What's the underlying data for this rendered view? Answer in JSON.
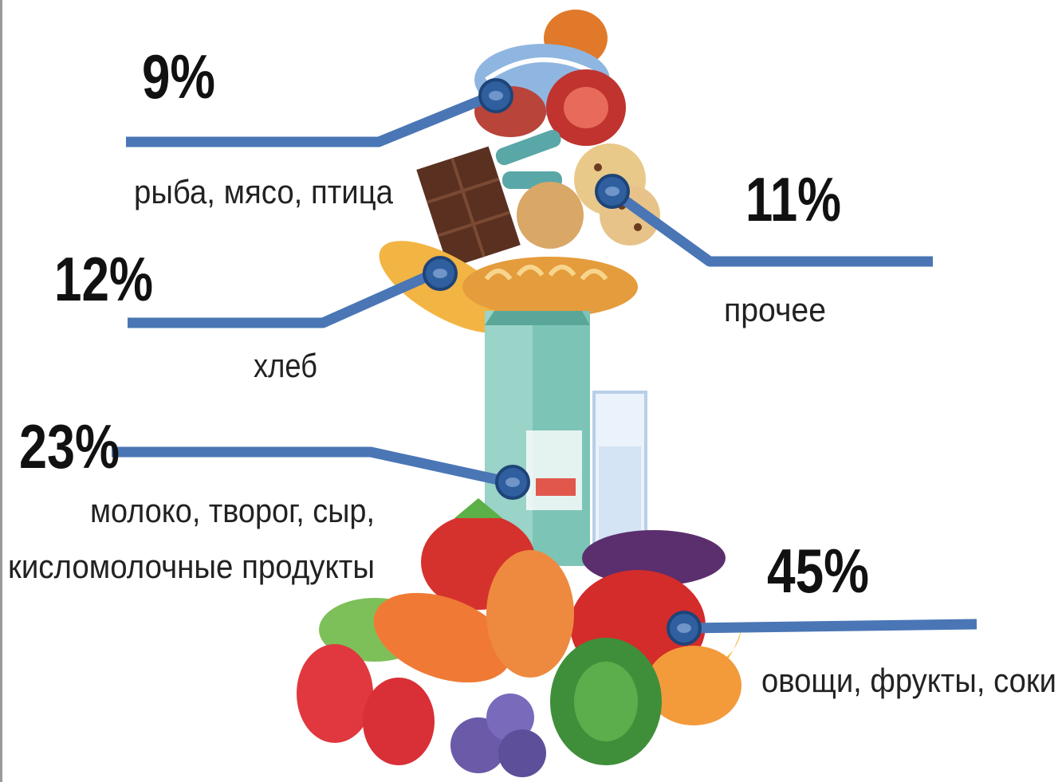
{
  "items": [
    {
      "percent": "9%",
      "label": "рыба, мясо, птица"
    },
    {
      "percent": "11%",
      "label": "прочее"
    },
    {
      "percent": "12%",
      "label": "хлеб"
    },
    {
      "percent": "23%",
      "label": [
        "молоко, творог, сыр,",
        "кисломолочные продукты"
      ]
    },
    {
      "percent": "45%",
      "label": "овощи, фрукты, соки"
    }
  ]
}
